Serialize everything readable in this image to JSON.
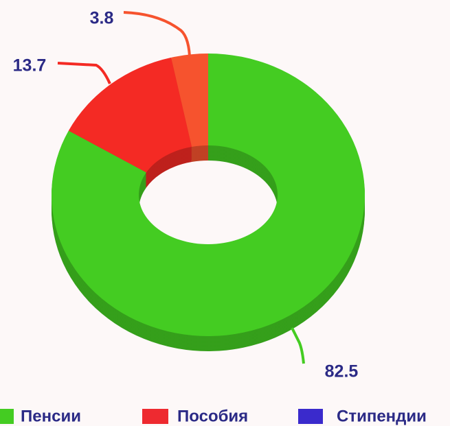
{
  "chart_data": {
    "type": "donut",
    "categories": [
      "Пенсии",
      "Пособия",
      "Стипендии"
    ],
    "values": [
      82.5,
      13.7,
      3.8
    ],
    "colors": [
      "#44cc22",
      "#f42a24",
      "#f6532e"
    ],
    "legend_colors": [
      "#44cc22",
      "#ee2a30",
      "#3a2acc"
    ]
  }
}
